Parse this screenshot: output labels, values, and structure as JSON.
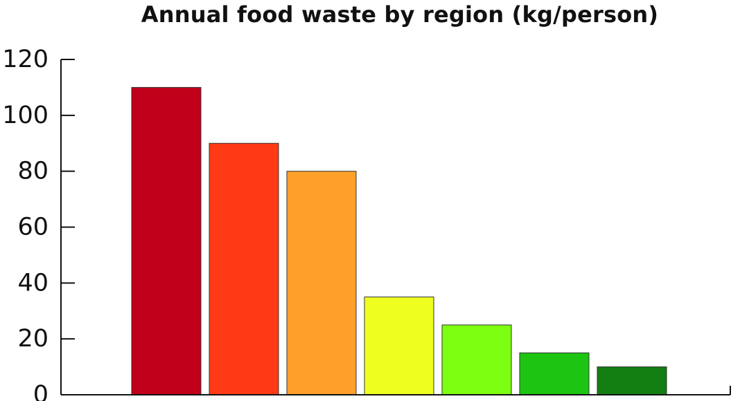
{
  "chart_data": {
    "type": "bar",
    "title": "Annual food waste by region (kg/person)",
    "xlabel": "",
    "ylabel": "",
    "values": [
      110,
      90,
      80,
      35,
      25,
      15,
      10
    ],
    "colors": [
      "#c0001a",
      "#ff3a14",
      "#ffa02a",
      "#eeff20",
      "#7cff10",
      "#1ec412",
      "#137e12"
    ],
    "ylim": [
      0,
      120
    ],
    "yticks": [
      0,
      20,
      40,
      60,
      80,
      100,
      120
    ],
    "grid": false,
    "legend": "none"
  }
}
